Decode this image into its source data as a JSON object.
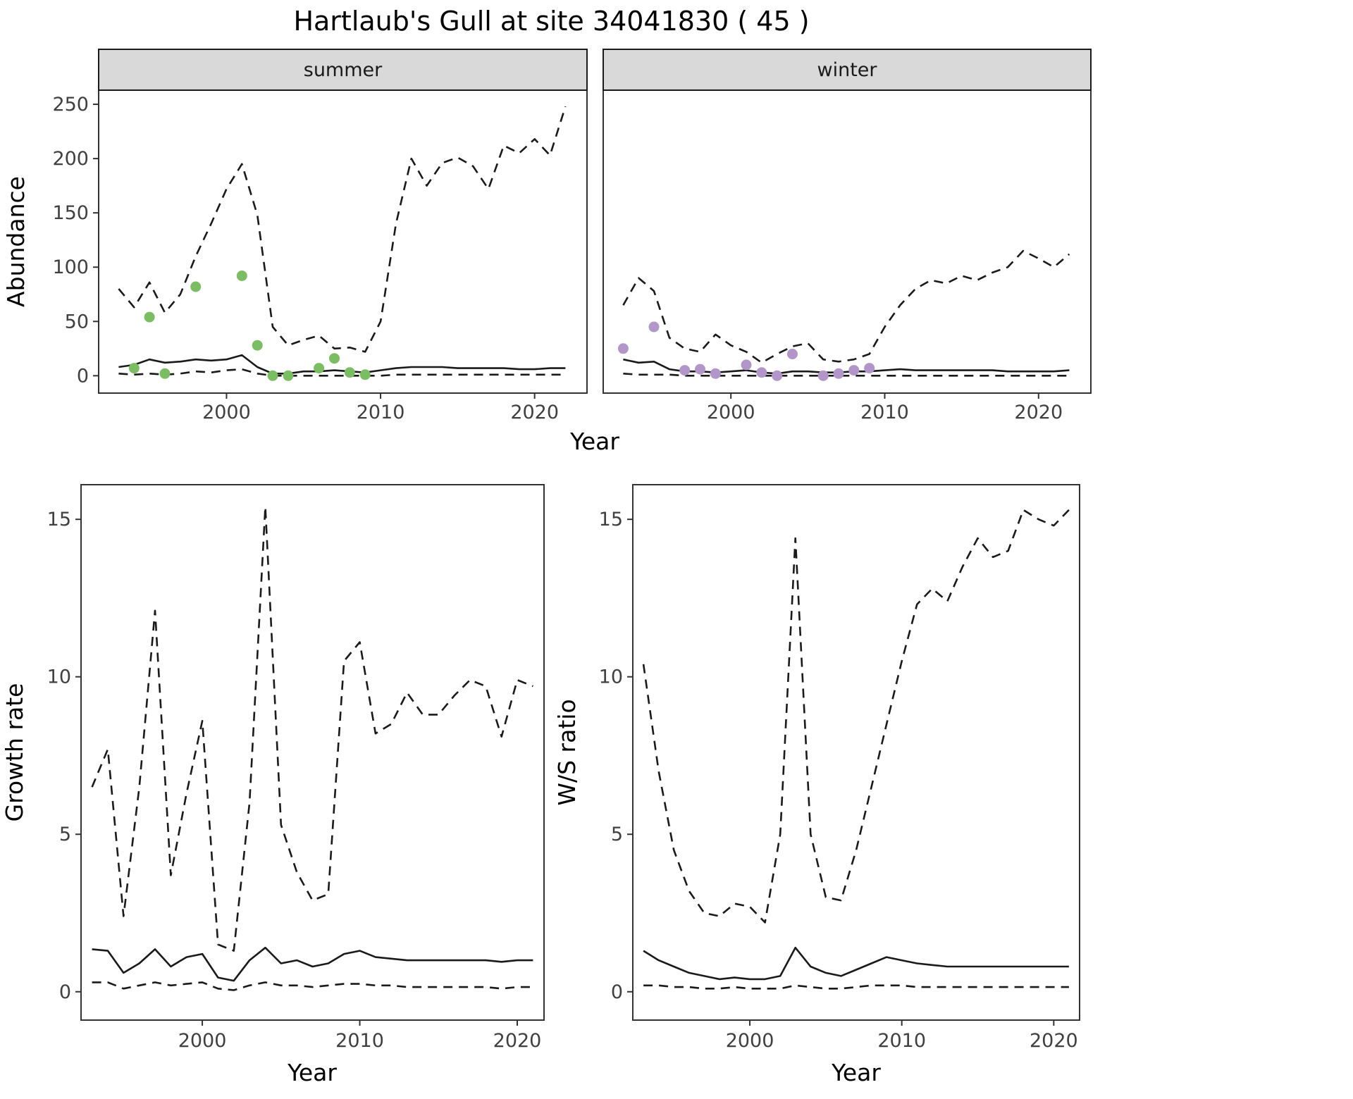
{
  "title": "Hartlaub's Gull at site 34041830 ( 45 )",
  "colors": {
    "summer_points": "#7bbd62",
    "winter_points": "#b295c9",
    "line": "#1a1a1a",
    "strip_bg": "#d9d9d9",
    "strip_border": "#1a1a1a",
    "strip_text": "#1a1a1a",
    "panel_border": "#333333",
    "tick_label": "#404040",
    "axis_title": "#000000"
  },
  "chart_data": [
    {
      "id": "abundance_summer",
      "type": "line",
      "facet_label": "summer",
      "xlabel": "Year",
      "ylabel": "Abundance",
      "xlim": [
        1991.7,
        2023.4
      ],
      "ylim": [
        -16,
        263
      ],
      "xticks": [
        2000,
        2010,
        2020
      ],
      "yticks": [
        0,
        50,
        100,
        150,
        200,
        250
      ],
      "x": [
        1993,
        1994,
        1995,
        1996,
        1997,
        1998,
        1999,
        2000,
        2001,
        2002,
        2003,
        2004,
        2005,
        2006,
        2007,
        2008,
        2009,
        2010,
        2011,
        2012,
        2013,
        2014,
        2015,
        2016,
        2017,
        2018,
        2019,
        2020,
        2021,
        2022
      ],
      "series": [
        {
          "name": "upper_ci",
          "style": "dashed",
          "values": [
            80,
            63,
            86,
            58,
            75,
            110,
            140,
            172,
            195,
            148,
            45,
            28,
            33,
            37,
            25,
            26,
            22,
            50,
            140,
            200,
            175,
            196,
            201,
            193,
            172,
            212,
            205,
            218,
            203,
            248
          ]
        },
        {
          "name": "median",
          "style": "solid",
          "values": [
            8,
            10,
            15,
            12,
            13,
            15,
            14,
            15,
            19,
            8,
            2,
            2,
            4,
            4,
            5,
            4,
            3,
            5,
            7,
            8,
            8,
            8,
            7,
            7,
            7,
            7,
            6,
            6,
            7,
            7
          ]
        },
        {
          "name": "lower_ci",
          "style": "dashed",
          "values": [
            2,
            1,
            2,
            1,
            2,
            4,
            3,
            5,
            6,
            2,
            0,
            0,
            0,
            0,
            0,
            0,
            0,
            0,
            1,
            1,
            1,
            1,
            1,
            1,
            1,
            1,
            1,
            1,
            1,
            1
          ]
        }
      ],
      "points": {
        "name": "observed",
        "color_key": "summer_points",
        "x": [
          1994,
          1995,
          1996,
          1998,
          2001,
          2002,
          2003,
          2004,
          2006,
          2007,
          2008,
          2009
        ],
        "y": [
          7,
          54,
          2,
          82,
          92,
          28,
          0,
          0,
          7,
          16,
          3,
          1
        ]
      }
    },
    {
      "id": "abundance_winter",
      "type": "line",
      "facet_label": "winter",
      "xlabel": "",
      "ylabel": "",
      "xlim": [
        1991.7,
        2023.4
      ],
      "ylim": [
        -16,
        263
      ],
      "xticks": [
        2000,
        2010,
        2020
      ],
      "yticks": [
        0,
        50,
        100,
        150,
        200,
        250
      ],
      "x": [
        1993,
        1994,
        1995,
        1996,
        1997,
        1998,
        1999,
        2000,
        2001,
        2002,
        2003,
        2004,
        2005,
        2006,
        2007,
        2008,
        2009,
        2010,
        2011,
        2012,
        2013,
        2014,
        2015,
        2016,
        2017,
        2018,
        2019,
        2020,
        2021,
        2022
      ],
      "series": [
        {
          "name": "upper_ci",
          "style": "dashed",
          "values": [
            65,
            90,
            78,
            35,
            25,
            22,
            38,
            28,
            22,
            12,
            20,
            27,
            30,
            15,
            13,
            15,
            20,
            45,
            65,
            80,
            88,
            85,
            92,
            88,
            95,
            100,
            115,
            108,
            100,
            112
          ]
        },
        {
          "name": "median",
          "style": "solid",
          "values": [
            15,
            12,
            13,
            6,
            4,
            4,
            3,
            4,
            5,
            3,
            2,
            4,
            4,
            3,
            3,
            4,
            4,
            5,
            6,
            5,
            5,
            5,
            5,
            5,
            5,
            4,
            4,
            4,
            4,
            5
          ]
        },
        {
          "name": "lower_ci",
          "style": "dashed",
          "values": [
            2,
            1,
            1,
            1,
            0,
            0,
            0,
            0,
            0,
            0,
            0,
            0,
            0,
            0,
            0,
            0,
            0,
            0,
            0,
            0,
            0,
            0,
            0,
            0,
            0,
            0,
            0,
            0,
            0,
            0
          ]
        }
      ],
      "points": {
        "name": "observed",
        "color_key": "winter_points",
        "x": [
          1993,
          1995,
          1997,
          1998,
          1999,
          2001,
          2002,
          2003,
          2004,
          2006,
          2007,
          2008,
          2009
        ],
        "y": [
          25,
          45,
          5,
          6,
          2,
          10,
          3,
          0,
          20,
          0,
          2,
          5,
          7
        ]
      }
    },
    {
      "id": "growth_rate",
      "type": "line",
      "facet_label": "",
      "xlabel": "Year",
      "ylabel": "Growth rate",
      "xlim": [
        1992.3,
        2021.7
      ],
      "ylim": [
        -0.9,
        16.1
      ],
      "xticks": [
        2000,
        2010,
        2020
      ],
      "yticks": [
        0,
        5,
        10,
        15
      ],
      "x": [
        1993,
        1994,
        1995,
        1996,
        1997,
        1998,
        1999,
        2000,
        2001,
        2002,
        2003,
        2004,
        2005,
        2006,
        2007,
        2008,
        2009,
        2010,
        2011,
        2012,
        2013,
        2014,
        2015,
        2016,
        2017,
        2018,
        2019,
        2020,
        2021
      ],
      "series": [
        {
          "name": "upper_ci",
          "style": "dashed",
          "values": [
            6.5,
            7.7,
            2.4,
            6.5,
            12.1,
            3.7,
            6.3,
            8.6,
            1.5,
            1.3,
            6.0,
            15.4,
            5.3,
            3.8,
            2.9,
            3.1,
            10.5,
            11.1,
            8.2,
            8.5,
            9.5,
            8.8,
            8.8,
            9.4,
            9.9,
            9.7,
            8.1,
            9.9,
            9.7
          ]
        },
        {
          "name": "median",
          "style": "solid",
          "values": [
            1.35,
            1.3,
            0.6,
            0.9,
            1.35,
            0.8,
            1.1,
            1.2,
            0.45,
            0.35,
            1.0,
            1.4,
            0.9,
            1.0,
            0.8,
            0.9,
            1.2,
            1.3,
            1.1,
            1.05,
            1.0,
            1.0,
            1.0,
            1.0,
            1.0,
            1.0,
            0.95,
            1.0,
            1.0
          ]
        },
        {
          "name": "lower_ci",
          "style": "dashed",
          "values": [
            0.3,
            0.3,
            0.1,
            0.2,
            0.3,
            0.2,
            0.25,
            0.3,
            0.1,
            0.05,
            0.2,
            0.3,
            0.2,
            0.2,
            0.15,
            0.2,
            0.25,
            0.25,
            0.2,
            0.2,
            0.15,
            0.15,
            0.15,
            0.15,
            0.15,
            0.15,
            0.1,
            0.15,
            0.15
          ]
        }
      ]
    },
    {
      "id": "ws_ratio",
      "type": "line",
      "facet_label": "",
      "xlabel": "Year",
      "ylabel": "W/S ratio",
      "xlim": [
        1992.3,
        2021.7
      ],
      "ylim": [
        -0.9,
        16.1
      ],
      "xticks": [
        2000,
        2010,
        2020
      ],
      "yticks": [
        0,
        5,
        10,
        15
      ],
      "x": [
        1993,
        1994,
        1995,
        1996,
        1997,
        1998,
        1999,
        2000,
        2001,
        2002,
        2003,
        2004,
        2005,
        2006,
        2007,
        2008,
        2009,
        2010,
        2011,
        2012,
        2013,
        2014,
        2015,
        2016,
        2017,
        2018,
        2019,
        2020,
        2021
      ],
      "series": [
        {
          "name": "upper_ci",
          "style": "dashed",
          "values": [
            10.4,
            7.0,
            4.5,
            3.2,
            2.5,
            2.4,
            2.8,
            2.7,
            2.2,
            5.0,
            14.4,
            5.0,
            3.0,
            2.9,
            4.5,
            6.5,
            8.5,
            10.5,
            12.3,
            12.8,
            12.4,
            13.5,
            14.4,
            13.8,
            14.0,
            15.3,
            15.0,
            14.8,
            15.3
          ]
        },
        {
          "name": "median",
          "style": "solid",
          "values": [
            1.3,
            1.0,
            0.8,
            0.6,
            0.5,
            0.4,
            0.45,
            0.4,
            0.4,
            0.5,
            1.4,
            0.8,
            0.6,
            0.5,
            0.7,
            0.9,
            1.1,
            1.0,
            0.9,
            0.85,
            0.8,
            0.8,
            0.8,
            0.8,
            0.8,
            0.8,
            0.8,
            0.8,
            0.8
          ]
        },
        {
          "name": "lower_ci",
          "style": "dashed",
          "values": [
            0.2,
            0.2,
            0.15,
            0.15,
            0.1,
            0.1,
            0.15,
            0.1,
            0.1,
            0.1,
            0.2,
            0.15,
            0.1,
            0.1,
            0.15,
            0.2,
            0.2,
            0.2,
            0.15,
            0.15,
            0.15,
            0.15,
            0.15,
            0.15,
            0.15,
            0.15,
            0.15,
            0.15,
            0.15
          ]
        }
      ]
    }
  ]
}
